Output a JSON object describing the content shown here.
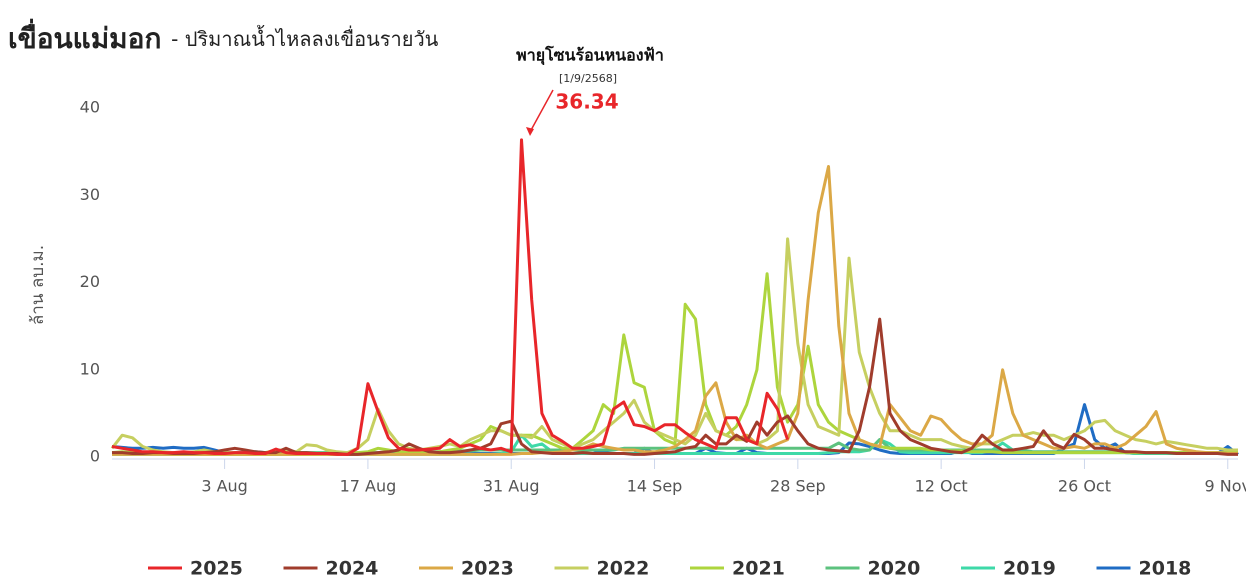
{
  "chart_data": {
    "type": "line",
    "title": "เขื่อนแม่มอก",
    "subtitle": "- ปริมาณน้ำไหลลงเขื่อนรายวัน",
    "y_label": "ล้าน ลบ.ม.",
    "annotation": {
      "text": "พายุโซนร้อนหนองฟ้า",
      "date": "[1/9/2568]"
    },
    "x": [
      "23 Jul",
      "24 Jul",
      "25 Jul",
      "26 Jul",
      "27 Jul",
      "28 Jul",
      "29 Jul",
      "30 Jul",
      "31 Jul",
      "1 Aug",
      "2 Aug",
      "3 Aug",
      "4 Aug",
      "5 Aug",
      "6 Aug",
      "7 Aug",
      "8 Aug",
      "9 Aug",
      "10 Aug",
      "11 Aug",
      "12 Aug",
      "13 Aug",
      "14 Aug",
      "15 Aug",
      "16 Aug",
      "17 Aug",
      "18 Aug",
      "19 Aug",
      "20 Aug",
      "21 Aug",
      "22 Aug",
      "23 Aug",
      "24 Aug",
      "25 Aug",
      "26 Aug",
      "27 Aug",
      "28 Aug",
      "29 Aug",
      "30 Aug",
      "31 Aug",
      "1 Sep",
      "2 Sep",
      "3 Sep",
      "4 Sep",
      "5 Sep",
      "6 Sep",
      "7 Sep",
      "8 Sep",
      "9 Sep",
      "10 Sep",
      "11 Sep",
      "12 Sep",
      "13 Sep",
      "14 Sep",
      "15 Sep",
      "16 Sep",
      "17 Sep",
      "18 Sep",
      "19 Sep",
      "20 Sep",
      "21 Sep",
      "22 Sep",
      "23 Sep",
      "24 Sep",
      "25 Sep",
      "26 Sep",
      "27 Sep",
      "28 Sep",
      "29 Sep",
      "30 Sep",
      "1 Oct",
      "2 Oct",
      "3 Oct",
      "4 Oct",
      "5 Oct",
      "6 Oct",
      "7 Oct",
      "8 Oct",
      "9 Oct",
      "10 Oct",
      "11 Oct",
      "12 Oct",
      "13 Oct",
      "14 Oct",
      "15 Oct",
      "16 Oct",
      "17 Oct",
      "18 Oct",
      "19 Oct",
      "20 Oct",
      "21 Oct",
      "22 Oct",
      "23 Oct",
      "24 Oct",
      "25 Oct",
      "26 Oct",
      "27 Oct",
      "28 Oct",
      "29 Oct",
      "30 Oct",
      "31 Oct",
      "1 Nov",
      "2 Nov",
      "3 Nov",
      "4 Nov",
      "5 Nov",
      "6 Nov",
      "7 Nov",
      "8 Nov",
      "9 Nov",
      "10 Nov"
    ],
    "xticks": [
      "3 Aug",
      "17 Aug",
      "31 Aug",
      "14 Sep",
      "28 Sep",
      "12 Oct",
      "26 Oct",
      "9 Nov"
    ],
    "ylim": [
      0,
      40
    ],
    "yticks": [
      0,
      10,
      20,
      30,
      40
    ],
    "grid": false,
    "series": [
      {
        "name": "2025",
        "color": "#e8262a",
        "values": [
          1.2,
          1,
          0.8,
          0.6,
          0.6,
          0.5,
          0.5,
          0.6,
          0.5,
          0.5,
          0.4,
          0.4,
          0.5,
          0.5,
          0.4,
          0.4,
          0.9,
          0.5,
          0.4,
          0.4,
          0.4,
          0.4,
          0.3,
          0.3,
          1,
          8.4,
          5.2,
          2.2,
          1,
          0.8,
          0.8,
          0.9,
          1,
          2,
          1.2,
          1.4,
          1,
          0.8,
          1,
          0.6,
          36.34,
          18,
          5,
          2.5,
          1.8,
          1,
          1,
          1.2,
          1.5,
          5.5,
          6.3,
          3.7,
          3.5,
          3,
          3.7,
          3.7,
          2.8,
          2,
          1.5,
          1,
          4.5,
          4.5,
          2,
          1.5,
          7.3,
          5.5,
          2,
          null,
          null,
          null,
          null,
          null,
          null,
          null,
          null,
          null,
          null,
          null,
          null,
          null,
          null,
          null,
          null,
          null,
          null,
          null,
          null,
          null,
          null,
          null,
          null,
          null,
          null,
          null,
          null,
          null,
          null,
          null,
          null,
          null,
          null,
          null,
          null,
          null,
          null,
          null,
          null,
          null,
          null,
          null,
          null
        ]
      },
      {
        "name": "2024",
        "color": "#a03c2c",
        "values": [
          0.5,
          0.5,
          0.4,
          0.4,
          0.5,
          0.5,
          0.4,
          0.4,
          0.4,
          0.5,
          0.6,
          0.8,
          1,
          0.8,
          0.6,
          0.5,
          0.5,
          1,
          0.5,
          0.5,
          0.4,
          0.4,
          0.4,
          0.3,
          0.3,
          0.4,
          0.5,
          0.6,
          0.8,
          1.5,
          1,
          0.6,
          0.5,
          0.5,
          0.6,
          0.8,
          1,
          1.5,
          3.8,
          4.1,
          1.5,
          0.6,
          0.5,
          0.4,
          0.4,
          0.4,
          0.5,
          0.4,
          0.4,
          0.4,
          0.4,
          0.3,
          0.3,
          0.4,
          0.5,
          0.6,
          1,
          1.2,
          2.5,
          1.5,
          1.5,
          2.5,
          1.8,
          4,
          2.5,
          4,
          4.7,
          3,
          1.5,
          1,
          0.8,
          0.7,
          0.6,
          3,
          8,
          15.8,
          5,
          3,
          2,
          1.5,
          1,
          0.8,
          0.6,
          0.5,
          1,
          2.5,
          1.5,
          0.8,
          0.8,
          1,
          1.2,
          3,
          1.5,
          1,
          2.6,
          2,
          1,
          1,
          0.8,
          0.6,
          0.6,
          0.5,
          0.5,
          0.5,
          0.4,
          0.4,
          0.4,
          0.4,
          0.4,
          0.3,
          0.3
        ]
      },
      {
        "name": "2023",
        "color": "#dba846",
        "values": [
          0.3,
          0.3,
          0.3,
          0.3,
          0.3,
          0.3,
          0.3,
          0.3,
          0.3,
          0.3,
          0.3,
          0.3,
          0.3,
          0.3,
          0.3,
          0.3,
          0.3,
          0.3,
          0.3,
          0.3,
          0.3,
          0.3,
          0.3,
          0.3,
          0.3,
          0.3,
          0.3,
          0.3,
          0.3,
          0.3,
          0.3,
          0.3,
          0.3,
          0.3,
          0.3,
          0.3,
          0.3,
          0.3,
          0.3,
          0.3,
          0.4,
          0.4,
          0.5,
          0.5,
          0.6,
          0.8,
          1,
          1.5,
          1.2,
          1,
          0.8,
          0.8,
          0.6,
          0.6,
          0.8,
          1.2,
          2,
          3,
          7,
          8.5,
          4,
          2,
          2.5,
          1.5,
          1,
          1.5,
          2,
          5,
          18,
          28,
          33.3,
          15,
          5,
          2,
          1.5,
          1.2,
          6,
          4.5,
          3,
          2.5,
          4.7,
          4.3,
          3,
          2,
          1.5,
          1.5,
          2.5,
          10,
          5,
          2.5,
          2,
          1.5,
          1,
          1,
          1.2,
          1,
          1.5,
          1.5,
          1,
          1.5,
          2.5,
          3.5,
          5.2,
          1.5,
          1,
          0.8,
          0.6,
          0.5,
          0.5,
          0.4,
          0.4
        ]
      },
      {
        "name": "2022",
        "color": "#c6cf60",
        "values": [
          1,
          2.5,
          2.2,
          1.2,
          0.8,
          0.6,
          0.5,
          0.5,
          0.6,
          0.8,
          0.6,
          0.5,
          0.5,
          0.4,
          0.4,
          0.5,
          0.8,
          0.8,
          0.6,
          1.4,
          1.3,
          0.8,
          0.6,
          0.5,
          1,
          2,
          5.5,
          3,
          1.5,
          1,
          0.8,
          1,
          1.2,
          1.5,
          1.2,
          2,
          2.5,
          3,
          3,
          2.5,
          2.5,
          2.2,
          3.5,
          2,
          1.5,
          1,
          1.5,
          2,
          3,
          4,
          5,
          6.5,
          4,
          3,
          2.5,
          2,
          1.5,
          2.5,
          5,
          3,
          2.5,
          2,
          2,
          1.5,
          2,
          3,
          25,
          13,
          6,
          3.5,
          3,
          2.5,
          22.8,
          12,
          8,
          5,
          3,
          3,
          2.5,
          2,
          2,
          2,
          1.5,
          1.2,
          1,
          1.5,
          1.5,
          2,
          2.5,
          2.5,
          2.8,
          2.5,
          2.5,
          2,
          2.5,
          3,
          4,
          4.2,
          3,
          2.5,
          2,
          1.8,
          1.5,
          1.8,
          1.6,
          1.4,
          1.2,
          1,
          1,
          0.8,
          0.8
        ]
      },
      {
        "name": "2021",
        "color": "#add53d",
        "values": [
          0.5,
          0.6,
          0.5,
          0.4,
          0.4,
          0.4,
          0.3,
          0.3,
          0.3,
          0.3,
          0.3,
          0.3,
          0.3,
          0.3,
          0.3,
          0.3,
          0.3,
          0.3,
          0.3,
          0.3,
          0.3,
          0.3,
          0.3,
          0.4,
          0.5,
          0.6,
          1,
          0.8,
          0.6,
          0.5,
          0.5,
          0.5,
          0.6,
          0.8,
          1,
          1.5,
          2,
          3.5,
          3,
          2.5,
          2.5,
          2.5,
          2,
          1.5,
          1,
          1,
          2,
          3,
          6,
          5,
          14,
          8.5,
          8,
          3,
          2,
          1.5,
          17.5,
          15.8,
          6,
          3,
          2.5,
          3.5,
          6,
          10,
          21,
          8,
          4,
          6,
          12.7,
          6,
          4,
          3,
          2.5,
          2,
          1.5,
          1.2,
          1,
          1,
          1,
          1,
          0.8,
          0.8,
          0.7,
          0.7,
          0.6,
          0.6,
          0.6,
          0.5,
          0.5,
          0.5,
          0.5,
          0.5,
          0.5,
          0.5,
          0.5,
          0.5,
          0.5,
          0.5,
          0.5,
          0.5,
          0.5,
          0.5,
          0.5,
          0.5,
          0.5,
          0.5,
          0.5,
          0.5,
          0.5,
          0.5,
          0.5
        ]
      },
      {
        "name": "2020",
        "color": "#5cc27e",
        "values": [
          0.5,
          0.5,
          0.5,
          0.5,
          0.5,
          0.5,
          0.5,
          0.5,
          0.5,
          0.5,
          0.5,
          0.5,
          0.5,
          0.5,
          0.5,
          0.5,
          0.5,
          0.5,
          0.5,
          0.5,
          0.5,
          0.5,
          0.5,
          0.5,
          0.5,
          0.5,
          0.5,
          0.5,
          0.5,
          0.5,
          0.6,
          0.6,
          0.6,
          0.7,
          0.7,
          0.7,
          0.8,
          0.8,
          0.8,
          0.8,
          0.8,
          0.8,
          0.8,
          0.8,
          0.8,
          0.8,
          0.8,
          0.8,
          0.8,
          0.8,
          1,
          1,
          1,
          1,
          1,
          1,
          1,
          1,
          1,
          1,
          1,
          1,
          1,
          1,
          1,
          1,
          1,
          1,
          1,
          1,
          1,
          1.6,
          1,
          0.8,
          0.8,
          2,
          1,
          0.8,
          0.8,
          0.8,
          0.8,
          0.8,
          0.8,
          0.8,
          0.8,
          0.8,
          0.8,
          0.8,
          0.8,
          0.8,
          0.6,
          0.6,
          0.6,
          0.6,
          0.6,
          0.6,
          0.6,
          0.6,
          0.6,
          0.6,
          0.5,
          0.5,
          0.5,
          0.5,
          0.5,
          0.5,
          0.5,
          0.5,
          0.5,
          0.5,
          0.5
        ]
      },
      {
        "name": "2019",
        "color": "#3ed9a8",
        "values": [
          0.3,
          0.3,
          0.3,
          0.3,
          0.3,
          0.3,
          0.3,
          0.3,
          0.3,
          0.3,
          0.3,
          0.3,
          0.3,
          0.3,
          0.3,
          0.3,
          0.3,
          0.3,
          0.3,
          0.3,
          0.3,
          0.3,
          0.3,
          0.3,
          0.3,
          0.3,
          0.3,
          0.3,
          0.3,
          0.3,
          0.3,
          0.3,
          0.3,
          0.3,
          0.3,
          0.3,
          0.3,
          0.3,
          0.4,
          0.6,
          2.5,
          1.2,
          1.5,
          0.6,
          0.4,
          0.4,
          0.4,
          0.4,
          0.4,
          0.4,
          0.4,
          0.4,
          0.4,
          0.4,
          0.4,
          0.4,
          0.4,
          0.4,
          0.4,
          0.4,
          0.4,
          0.4,
          0.4,
          0.4,
          0.4,
          0.4,
          0.4,
          0.4,
          0.4,
          0.4,
          0.5,
          0.6,
          0.6,
          0.6,
          0.8,
          2,
          1.5,
          0.6,
          0.5,
          0.5,
          0.5,
          0.5,
          0.5,
          0.5,
          0.5,
          0.5,
          0.8,
          1.6,
          0.8,
          0.5,
          0.5,
          0.5,
          0.5,
          0.5,
          0.5,
          0.5,
          0.5,
          0.5,
          0.5,
          0.5,
          0.4,
          0.4,
          0.4,
          0.4,
          0.4,
          0.4,
          0.4,
          0.4,
          0.4,
          0.4,
          0.4
        ]
      },
      {
        "name": "2018",
        "color": "#1f6cc4",
        "values": [
          1.2,
          1.1,
          1,
          1,
          1.1,
          1,
          1.1,
          1,
          1,
          1.1,
          0.8,
          0.5,
          0.4,
          0.5,
          0.6,
          0.5,
          0.3,
          0.4,
          0.4,
          0.4,
          0.4,
          0.4,
          0.4,
          0.4,
          0.4,
          0.4,
          0.4,
          0.4,
          0.4,
          0.4,
          0.4,
          0.4,
          0.4,
          0.4,
          0.4,
          0.4,
          0.4,
          0.4,
          0.4,
          0.4,
          0.4,
          0.4,
          0.8,
          0.8,
          0.8,
          0.8,
          0.8,
          0.8,
          0.5,
          0.4,
          0.4,
          0.4,
          1,
          0.4,
          0.4,
          0.4,
          0.4,
          0.4,
          1,
          0.5,
          0.4,
          0.4,
          1,
          0.5,
          0.4,
          0.4,
          0.4,
          0.4,
          0.4,
          0.4,
          0.4,
          0.5,
          1.6,
          1.5,
          1.2,
          0.8,
          0.5,
          0.4,
          0.4,
          0.4,
          0.4,
          0.4,
          0.4,
          0.8,
          0.4,
          0.4,
          0.4,
          0.4,
          0.4,
          0.4,
          0.4,
          0.4,
          0.4,
          1,
          1.5,
          6,
          2,
          1,
          1.5,
          0.5,
          0.4,
          0.4,
          0.4,
          0.4,
          0.4,
          0.4,
          0.4,
          0.4,
          0.4,
          1.2,
          0.3
        ]
      }
    ]
  }
}
